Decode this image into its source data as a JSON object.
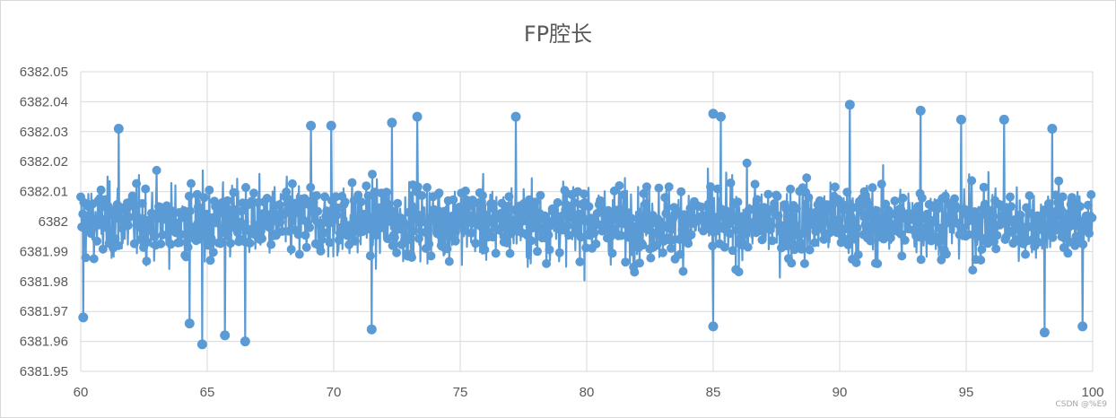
{
  "chart_data": {
    "type": "line",
    "title": "FP腔长",
    "xlabel": "",
    "ylabel": "",
    "xlim": [
      60,
      100
    ],
    "ylim": [
      6381.95,
      6382.05
    ],
    "x_ticks": [
      "60",
      "65",
      "70",
      "75",
      "80",
      "85",
      "90",
      "95",
      "100"
    ],
    "y_ticks": [
      "6382.05",
      "6382.04",
      "6382.03",
      "6382.02",
      "6382.01",
      "6382",
      "6381.99",
      "6381.98",
      "6381.97",
      "6381.96",
      "6381.95"
    ],
    "grid": true,
    "legend": "none",
    "markers": true,
    "series": [
      {
        "color": "#5b9bd5",
        "center": 6382.0,
        "typical_range": [
          6381.975,
          6382.025
        ],
        "sample_count": 2000,
        "notable_points": [
          {
            "x": 60.1,
            "y": 6381.968
          },
          {
            "x": 61.5,
            "y": 6382.031
          },
          {
            "x": 64.3,
            "y": 6381.966
          },
          {
            "x": 64.8,
            "y": 6381.959
          },
          {
            "x": 65.7,
            "y": 6381.962
          },
          {
            "x": 66.5,
            "y": 6381.96
          },
          {
            "x": 69.1,
            "y": 6382.032
          },
          {
            "x": 69.9,
            "y": 6382.032
          },
          {
            "x": 71.5,
            "y": 6381.964
          },
          {
            "x": 72.3,
            "y": 6382.033
          },
          {
            "x": 73.3,
            "y": 6382.035
          },
          {
            "x": 77.2,
            "y": 6382.035
          },
          {
            "x": 85.0,
            "y": 6382.036
          },
          {
            "x": 85.0,
            "y": 6381.965
          },
          {
            "x": 85.3,
            "y": 6382.035
          },
          {
            "x": 90.4,
            "y": 6382.039
          },
          {
            "x": 93.2,
            "y": 6382.037
          },
          {
            "x": 94.8,
            "y": 6382.034
          },
          {
            "x": 96.5,
            "y": 6382.034
          },
          {
            "x": 98.1,
            "y": 6381.963
          },
          {
            "x": 98.4,
            "y": 6382.031
          },
          {
            "x": 99.6,
            "y": 6381.965
          }
        ]
      }
    ]
  },
  "watermark": "CSDN @%E9"
}
